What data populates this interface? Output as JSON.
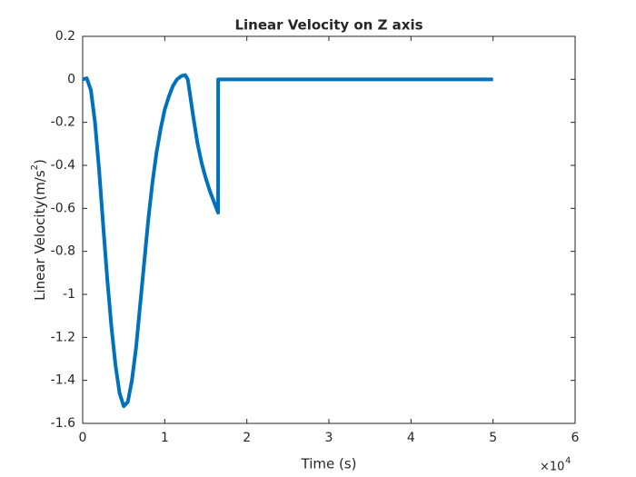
{
  "chart_data": {
    "type": "line",
    "title": "Linear Velocity on Z axis",
    "xlabel": "Time (s)",
    "ylabel": {
      "text": "Linear Velocity(m/s",
      "superscript": "2",
      "suffix": ")"
    },
    "x_multiplier": {
      "base": "×10",
      "exponent": "4"
    },
    "x": [
      0,
      0.05,
      0.1,
      0.15,
      0.2,
      0.25,
      0.3,
      0.35,
      0.4,
      0.45,
      0.5,
      0.55,
      0.6,
      0.65,
      0.7,
      0.75,
      0.8,
      0.85,
      0.9,
      0.95,
      1.0,
      1.05,
      1.1,
      1.15,
      1.2,
      1.25,
      1.28,
      1.3,
      1.35,
      1.4,
      1.45,
      1.5,
      1.55,
      1.6,
      1.65,
      1.651,
      5.0
    ],
    "series": [
      {
        "color": "#0072bd",
        "values": [
          0,
          0.005,
          -0.05,
          -0.2,
          -0.42,
          -0.68,
          -0.93,
          -1.15,
          -1.33,
          -1.46,
          -1.52,
          -1.5,
          -1.4,
          -1.25,
          -1.05,
          -0.85,
          -0.65,
          -0.48,
          -0.34,
          -0.23,
          -0.14,
          -0.08,
          -0.03,
          0.0,
          0.015,
          0.02,
          0.0,
          -0.05,
          -0.18,
          -0.3,
          -0.39,
          -0.46,
          -0.52,
          -0.57,
          -0.62,
          0,
          0
        ]
      }
    ],
    "xlim": [
      0,
      6
    ],
    "xticks": [
      0,
      1,
      2,
      3,
      4,
      5,
      6
    ],
    "ylim": [
      -1.6,
      0.2
    ],
    "yticks": [
      -1.6,
      -1.4,
      -1.2,
      -1,
      -0.8,
      -0.6,
      -0.4,
      -0.2,
      0,
      0.2
    ]
  }
}
